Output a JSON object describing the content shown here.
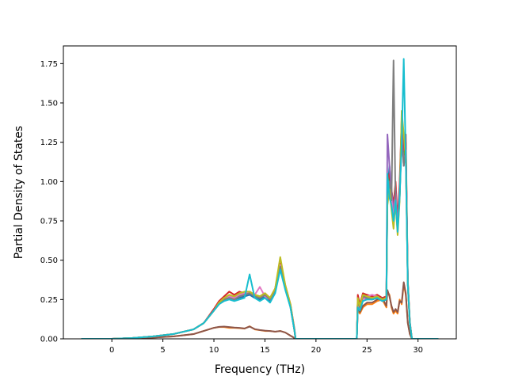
{
  "chart_data": {
    "type": "line",
    "title": "",
    "xlabel": "Frequency (THz)",
    "ylabel": "Partial Density of States",
    "xlim": [
      -4.75,
      33.75
    ],
    "ylim": [
      0,
      1.8625
    ],
    "x_ticks": [
      "0",
      "5",
      "10",
      "15",
      "20",
      "25",
      "30"
    ],
    "y_ticks": [
      "0.00",
      "0.25",
      "0.50",
      "0.75",
      "1.00",
      "1.25",
      "1.50",
      "1.75"
    ],
    "grid": false,
    "legend": "none",
    "colors": [
      "#1f77b4",
      "#ff7f0e",
      "#2ca02c",
      "#d62728",
      "#9467bd",
      "#8c564b",
      "#e377c2",
      "#7f7f7f",
      "#bcbd22",
      "#17becf"
    ],
    "series": [
      {
        "x": [
          -3,
          0,
          2,
          4,
          6,
          8,
          9,
          10,
          10.5,
          11,
          11.5,
          12,
          12.5,
          13,
          13.5,
          14,
          14.5,
          15,
          15.5,
          16,
          16.5,
          17,
          17.5,
          17.9,
          18,
          24,
          24.1,
          24.3,
          24.6,
          25,
          25.5,
          26,
          26.5,
          26.9,
          27,
          27.2,
          27.4,
          27.6,
          27.8,
          28,
          28.2,
          28.4,
          28.6,
          28.8,
          29,
          29.2,
          29.4,
          30,
          32
        ],
        "values": [
          0,
          0,
          0.005,
          0.015,
          0.03,
          0.06,
          0.1,
          0.18,
          0.22,
          0.25,
          0.26,
          0.25,
          0.26,
          0.27,
          0.28,
          0.26,
          0.25,
          0.27,
          0.24,
          0.3,
          0.45,
          0.32,
          0.2,
          0.05,
          0,
          0,
          0.25,
          0.2,
          0.27,
          0.26,
          0.25,
          0.26,
          0.24,
          0.25,
          0.9,
          1.1,
          0.9,
          0.8,
          0.9,
          0.7,
          0.9,
          1.3,
          1.1,
          1.2,
          0.35,
          0.1,
          0,
          0,
          0
        ]
      },
      {
        "x": [
          -3,
          0,
          2,
          4,
          6,
          8,
          9,
          10,
          10.5,
          11,
          11.5,
          12,
          12.5,
          13,
          13.5,
          14,
          14.5,
          15,
          15.5,
          16,
          16.5,
          17,
          17.5,
          17.9,
          18,
          24,
          24.1,
          24.3,
          24.6,
          25,
          25.5,
          26,
          26.5,
          26.9,
          27,
          27.2,
          27.4,
          27.6,
          27.8,
          28,
          28.2,
          28.4,
          28.6,
          28.8,
          29,
          29.2,
          29.4,
          30,
          32
        ],
        "values": [
          0,
          0,
          0.003,
          0.008,
          0.015,
          0.03,
          0.05,
          0.07,
          0.075,
          0.075,
          0.07,
          0.07,
          0.068,
          0.065,
          0.08,
          0.06,
          0.055,
          0.05,
          0.05,
          0.045,
          0.05,
          0.04,
          0.02,
          0.005,
          0,
          0,
          0.18,
          0.16,
          0.2,
          0.22,
          0.22,
          0.24,
          0.25,
          0.2,
          0.3,
          0.28,
          0.2,
          0.16,
          0.18,
          0.16,
          0.25,
          0.22,
          0.35,
          0.28,
          0.1,
          0.03,
          0,
          0,
          0
        ]
      },
      {
        "x": [
          -3,
          0,
          2,
          4,
          6,
          8,
          9,
          10,
          10.5,
          11,
          11.5,
          12,
          12.5,
          13,
          13.5,
          14,
          14.5,
          15,
          15.5,
          16,
          16.5,
          17,
          17.5,
          17.9,
          18,
          24,
          24.1,
          24.3,
          24.6,
          25,
          25.5,
          26,
          26.5,
          26.9,
          27,
          27.2,
          27.4,
          27.6,
          27.8,
          28,
          28.2,
          28.4,
          28.6,
          28.8,
          29,
          29.2,
          29.4,
          30,
          32
        ],
        "values": [
          0,
          0,
          0.005,
          0.015,
          0.03,
          0.06,
          0.1,
          0.18,
          0.23,
          0.26,
          0.27,
          0.26,
          0.27,
          0.28,
          0.29,
          0.27,
          0.26,
          0.28,
          0.25,
          0.31,
          0.47,
          0.33,
          0.21,
          0.05,
          0,
          0,
          0.26,
          0.21,
          0.28,
          0.27,
          0.26,
          0.27,
          0.25,
          0.26,
          0.95,
          1.05,
          0.85,
          0.75,
          0.95,
          0.72,
          0.95,
          1.35,
          1.15,
          1.25,
          0.36,
          0.1,
          0,
          0,
          0
        ]
      },
      {
        "x": [
          -3,
          0,
          2,
          4,
          6,
          8,
          9,
          10,
          10.5,
          11,
          11.5,
          12,
          12.5,
          13,
          13.5,
          14,
          14.5,
          15,
          15.5,
          16,
          16.5,
          17,
          17.5,
          17.9,
          18,
          24,
          24.1,
          24.3,
          24.6,
          25,
          25.5,
          26,
          26.5,
          26.9,
          27,
          27.2,
          27.4,
          27.6,
          27.8,
          28,
          28.2,
          28.4,
          28.6,
          28.8,
          29,
          29.2,
          29.4,
          30,
          32
        ],
        "values": [
          0,
          0,
          0.005,
          0.015,
          0.03,
          0.06,
          0.1,
          0.19,
          0.24,
          0.27,
          0.3,
          0.28,
          0.3,
          0.29,
          0.3,
          0.28,
          0.27,
          0.29,
          0.26,
          0.32,
          0.48,
          0.34,
          0.22,
          0.06,
          0,
          0,
          0.28,
          0.22,
          0.29,
          0.28,
          0.27,
          0.28,
          0.26,
          0.27,
          1.0,
          1.05,
          0.95,
          0.85,
          1.0,
          0.75,
          1.0,
          1.4,
          1.2,
          1.3,
          0.37,
          0.11,
          0,
          0,
          0
        ]
      },
      {
        "x": [
          -3,
          0,
          2,
          4,
          6,
          8,
          9,
          10,
          10.5,
          11,
          11.5,
          12,
          12.5,
          13,
          13.5,
          14,
          14.5,
          15,
          15.5,
          16,
          16.5,
          17,
          17.5,
          17.9,
          18,
          24,
          24.1,
          24.3,
          24.6,
          25,
          25.5,
          26,
          26.5,
          26.9,
          27,
          27.2,
          27.4,
          27.6,
          27.8,
          28,
          28.2,
          28.4,
          28.6,
          28.8,
          29,
          29.2,
          29.4,
          30,
          32
        ],
        "values": [
          0,
          0,
          0.005,
          0.015,
          0.03,
          0.06,
          0.1,
          0.18,
          0.22,
          0.25,
          0.27,
          0.26,
          0.27,
          0.28,
          0.29,
          0.27,
          0.26,
          0.28,
          0.25,
          0.31,
          0.46,
          0.33,
          0.21,
          0.05,
          0,
          0,
          0.24,
          0.2,
          0.26,
          0.25,
          0.26,
          0.27,
          0.25,
          0.26,
          1.3,
          1.1,
          0.95,
          0.8,
          0.95,
          0.7,
          0.95,
          1.35,
          1.1,
          1.2,
          0.35,
          0.1,
          0,
          0,
          0
        ]
      },
      {
        "x": [
          -3,
          0,
          2,
          4,
          6,
          8,
          9,
          10,
          10.5,
          11,
          11.5,
          12,
          12.5,
          13,
          13.5,
          14,
          14.5,
          15,
          15.5,
          16,
          16.5,
          17,
          17.5,
          17.9,
          18,
          24,
          24.1,
          24.3,
          24.6,
          25,
          25.5,
          26,
          26.5,
          26.9,
          27,
          27.2,
          27.4,
          27.6,
          27.8,
          28,
          28.2,
          28.4,
          28.6,
          28.8,
          29,
          29.2,
          29.4,
          30,
          32
        ],
        "values": [
          0,
          0,
          0.003,
          0.008,
          0.015,
          0.03,
          0.05,
          0.07,
          0.076,
          0.078,
          0.075,
          0.072,
          0.07,
          0.066,
          0.078,
          0.062,
          0.056,
          0.052,
          0.05,
          0.046,
          0.05,
          0.04,
          0.02,
          0.005,
          0,
          0,
          0.2,
          0.17,
          0.21,
          0.23,
          0.23,
          0.25,
          0.26,
          0.21,
          0.31,
          0.27,
          0.21,
          0.17,
          0.19,
          0.17,
          0.24,
          0.23,
          0.36,
          0.29,
          0.1,
          0.03,
          0,
          0,
          0
        ]
      },
      {
        "x": [
          -3,
          0,
          2,
          4,
          6,
          8,
          9,
          10,
          10.5,
          11,
          11.5,
          12,
          12.5,
          13,
          13.5,
          14,
          14.5,
          15,
          15.5,
          16,
          16.5,
          17,
          17.5,
          17.9,
          18,
          24,
          24.1,
          24.3,
          24.6,
          25,
          25.5,
          26,
          26.5,
          26.9,
          27,
          27.2,
          27.4,
          27.6,
          27.8,
          28,
          28.2,
          28.4,
          28.6,
          28.8,
          29,
          29.2,
          29.4,
          30,
          32
        ],
        "values": [
          0,
          0,
          0.005,
          0.015,
          0.03,
          0.06,
          0.1,
          0.18,
          0.23,
          0.26,
          0.27,
          0.26,
          0.28,
          0.29,
          0.3,
          0.28,
          0.33,
          0.27,
          0.25,
          0.31,
          0.47,
          0.33,
          0.21,
          0.05,
          0,
          0,
          0.22,
          0.19,
          0.25,
          0.27,
          0.28,
          0.27,
          0.25,
          0.26,
          0.92,
          1.0,
          0.9,
          0.75,
          0.92,
          0.68,
          0.92,
          1.3,
          1.1,
          1.2,
          0.35,
          0.1,
          0,
          0,
          0
        ]
      },
      {
        "x": [
          -3,
          0,
          2,
          4,
          6,
          8,
          9,
          10,
          10.5,
          11,
          11.5,
          12,
          12.5,
          13,
          13.5,
          14,
          14.5,
          15,
          15.5,
          16,
          16.5,
          17,
          17.5,
          17.9,
          18,
          24,
          24.1,
          24.3,
          24.6,
          25,
          25.5,
          26,
          26.5,
          26.9,
          27,
          27.2,
          27.4,
          27.6,
          27.8,
          28,
          28.2,
          28.4,
          28.6,
          28.8,
          29,
          29.2,
          29.4,
          30,
          32
        ],
        "values": [
          0,
          0,
          0.005,
          0.015,
          0.03,
          0.06,
          0.1,
          0.18,
          0.22,
          0.25,
          0.26,
          0.25,
          0.27,
          0.28,
          0.29,
          0.27,
          0.26,
          0.28,
          0.25,
          0.31,
          0.46,
          0.33,
          0.21,
          0.05,
          0,
          0,
          0.25,
          0.2,
          0.27,
          0.26,
          0.25,
          0.26,
          0.24,
          0.25,
          0.9,
          1.0,
          0.88,
          1.77,
          0.85,
          0.7,
          0.9,
          1.3,
          1.1,
          1.2,
          0.35,
          0.1,
          0,
          0,
          0
        ]
      },
      {
        "x": [
          -3,
          0,
          2,
          4,
          6,
          8,
          9,
          10,
          10.5,
          11,
          11.5,
          12,
          12.5,
          13,
          13.5,
          14,
          14.5,
          15,
          15.5,
          16,
          16.5,
          17,
          17.5,
          17.9,
          18,
          24,
          24.1,
          24.3,
          24.6,
          25,
          25.5,
          26,
          26.5,
          26.9,
          27,
          27.2,
          27.4,
          27.6,
          27.8,
          28,
          28.2,
          28.4,
          28.6,
          28.8,
          29,
          29.2,
          29.4,
          30,
          32
        ],
        "values": [
          0,
          0,
          0.005,
          0.015,
          0.03,
          0.06,
          0.1,
          0.18,
          0.23,
          0.26,
          0.28,
          0.27,
          0.29,
          0.3,
          0.3,
          0.28,
          0.27,
          0.29,
          0.26,
          0.32,
          0.52,
          0.34,
          0.22,
          0.05,
          0,
          0,
          0.26,
          0.21,
          0.28,
          0.27,
          0.26,
          0.27,
          0.25,
          0.26,
          0.85,
          0.95,
          0.82,
          0.7,
          0.88,
          0.66,
          0.88,
          1.45,
          1.3,
          1.15,
          0.34,
          0.1,
          0,
          0,
          0
        ]
      },
      {
        "x": [
          -3,
          0,
          2,
          4,
          6,
          8,
          9,
          10,
          10.5,
          11,
          11.5,
          12,
          12.5,
          13,
          13.5,
          14,
          14.5,
          15,
          15.5,
          16,
          16.5,
          17,
          17.5,
          17.9,
          18,
          24,
          24.1,
          24.3,
          24.6,
          25,
          25.5,
          26,
          26.5,
          26.9,
          27,
          27.2,
          27.4,
          27.6,
          27.8,
          28,
          28.2,
          28.4,
          28.6,
          28.8,
          29,
          29.2,
          29.4,
          30,
          32
        ],
        "values": [
          0,
          0,
          0.005,
          0.015,
          0.03,
          0.06,
          0.1,
          0.18,
          0.22,
          0.24,
          0.25,
          0.24,
          0.25,
          0.26,
          0.41,
          0.26,
          0.24,
          0.26,
          0.23,
          0.29,
          0.44,
          0.31,
          0.2,
          0.05,
          0,
          0,
          0.2,
          0.18,
          0.24,
          0.25,
          0.25,
          0.26,
          0.24,
          0.25,
          1.05,
          0.9,
          0.85,
          0.75,
          0.88,
          0.68,
          0.9,
          1.25,
          1.78,
          1.15,
          0.34,
          0.1,
          0,
          0,
          0
        ]
      }
    ]
  }
}
